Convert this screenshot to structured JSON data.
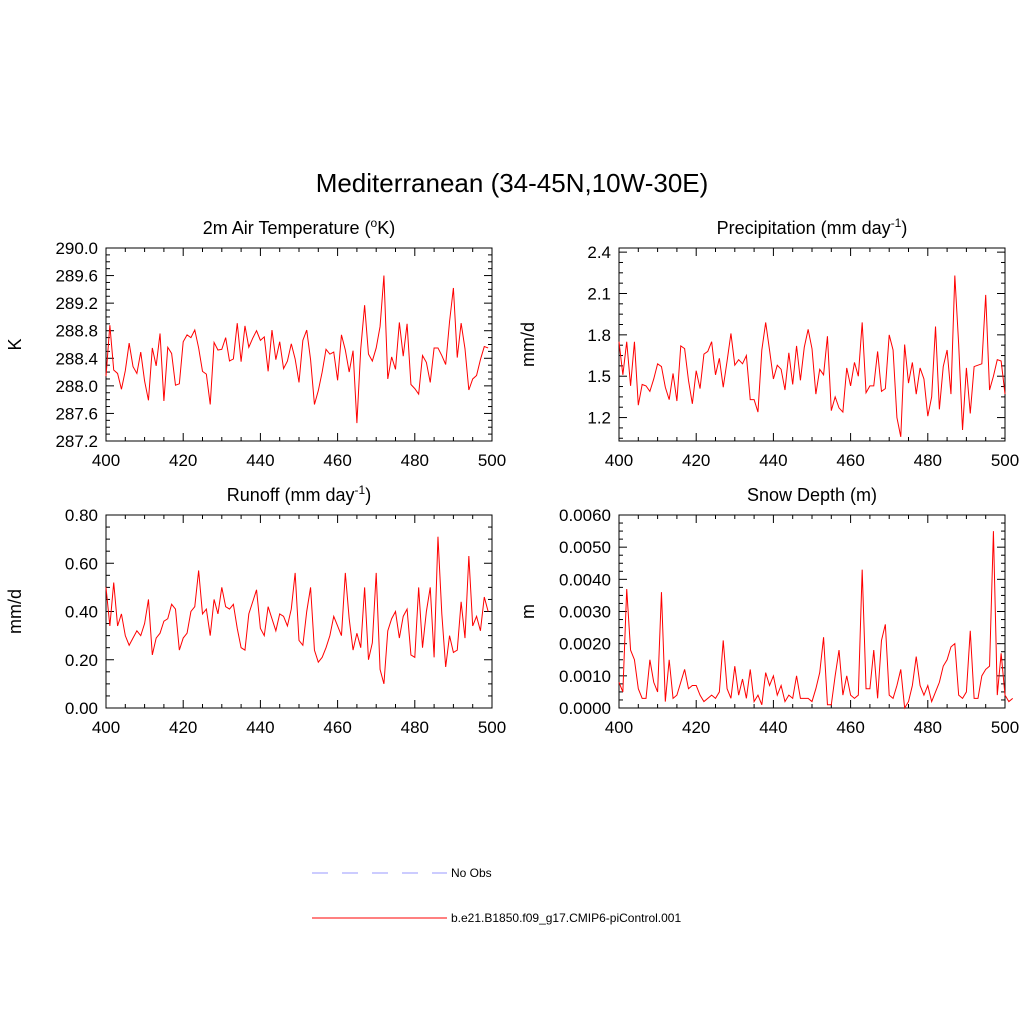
{
  "title": "Mediterranean (34-45N,10W-30E)",
  "legend": {
    "position": "bottom-center",
    "entries": [
      {
        "label": "No Obs",
        "color": "#9999ff",
        "style": "dashed"
      },
      {
        "label": "b.e21.B1850.f09_g17.CMIP6-piControl.001",
        "color": "#ff0000",
        "style": "solid"
      }
    ]
  },
  "chart_data": [
    {
      "type": "line",
      "title": "2m Air Temperature (",
      "title_sup": "o",
      "title_tail": "K)",
      "ylabel": "K",
      "xlim": [
        400,
        500
      ],
      "ylim": [
        287.2,
        290.0
      ],
      "xticks": [
        "400",
        "420",
        "440",
        "460",
        "480",
        "500"
      ],
      "yticks": [
        "287.2",
        "287.6",
        "288.0",
        "288.4",
        "288.8",
        "289.2",
        "289.6",
        "290.0"
      ],
      "series": [
        {
          "color": "#ff0000",
          "x_start": 400,
          "values": [
            288.14,
            288.88,
            288.23,
            288.18,
            287.95,
            288.22,
            288.62,
            288.28,
            288.18,
            288.49,
            288.07,
            287.79,
            288.55,
            288.29,
            288.76,
            287.78,
            288.56,
            288.47,
            288.01,
            288.03,
            288.64,
            288.74,
            288.7,
            288.81,
            288.55,
            288.21,
            288.17,
            287.73,
            288.63,
            288.52,
            288.53,
            288.7,
            288.36,
            288.39,
            288.91,
            288.35,
            288.87,
            288.56,
            288.69,
            288.8,
            288.66,
            288.71,
            288.21,
            288.81,
            288.38,
            288.64,
            288.25,
            288.36,
            288.61,
            288.39,
            288.05,
            288.66,
            288.81,
            288.38,
            287.73,
            287.93,
            288.2,
            288.53,
            288.46,
            288.49,
            288.08,
            288.74,
            288.52,
            288.2,
            288.51,
            287.46,
            288.54,
            289.17,
            288.46,
            288.36,
            288.55,
            288.86,
            289.6,
            288.1,
            288.42,
            288.24,
            288.92,
            288.43,
            288.9,
            288.02,
            287.96,
            287.88,
            288.44,
            288.34,
            288.05,
            288.55,
            288.55,
            288.44,
            288.31,
            288.93,
            289.42,
            288.41,
            288.91,
            288.54,
            287.94,
            288.1,
            288.15,
            288.38,
            288.57,
            288.55
          ]
        }
      ]
    },
    {
      "type": "line",
      "title": "Precipitation (mm day",
      "title_sup": "-1",
      "title_tail": ")",
      "ylabel": "mm/d",
      "xlim": [
        400,
        500
      ],
      "ylim": [
        1.03,
        2.43
      ],
      "xticks": [
        "400",
        "420",
        "440",
        "460",
        "480",
        "500"
      ],
      "yticks": [
        "1.2",
        "1.5",
        "1.8",
        "2.1",
        "2.4"
      ],
      "series": [
        {
          "color": "#ff0000",
          "x_start": 400,
          "values": [
            1.75,
            1.51,
            1.75,
            1.43,
            1.75,
            1.29,
            1.44,
            1.43,
            1.39,
            1.48,
            1.59,
            1.57,
            1.42,
            1.33,
            1.52,
            1.32,
            1.72,
            1.7,
            1.47,
            1.3,
            1.54,
            1.41,
            1.66,
            1.68,
            1.75,
            1.51,
            1.63,
            1.42,
            1.61,
            1.81,
            1.58,
            1.62,
            1.59,
            1.65,
            1.33,
            1.33,
            1.24,
            1.69,
            1.89,
            1.69,
            1.48,
            1.58,
            1.55,
            1.4,
            1.67,
            1.44,
            1.72,
            1.47,
            1.71,
            1.84,
            1.7,
            1.37,
            1.55,
            1.51,
            1.79,
            1.25,
            1.35,
            1.27,
            1.24,
            1.56,
            1.43,
            1.6,
            1.5,
            1.89,
            1.38,
            1.43,
            1.43,
            1.68,
            1.39,
            1.41,
            1.8,
            1.69,
            1.2,
            1.06,
            1.73,
            1.45,
            1.6,
            1.37,
            1.56,
            1.48,
            1.21,
            1.35,
            1.86,
            1.26,
            1.57,
            1.69,
            1.37,
            2.23,
            1.73,
            1.11,
            1.56,
            1.23,
            1.57,
            1.58,
            1.59,
            2.09,
            1.4,
            1.5,
            1.62,
            1.61,
            1.37
          ]
        }
      ]
    },
    {
      "type": "line",
      "title": "Runoff (mm day",
      "title_sup": "-1",
      "title_tail": ")",
      "ylabel": "mm/d",
      "xlim": [
        400,
        500
      ],
      "ylim": [
        0.0,
        0.8
      ],
      "xticks": [
        "400",
        "420",
        "440",
        "460",
        "480",
        "500"
      ],
      "yticks": [
        "0.00",
        "0.20",
        "0.40",
        "0.60",
        "0.80"
      ],
      "series": [
        {
          "color": "#ff0000",
          "x_start": 400,
          "values": [
            0.5,
            0.34,
            0.52,
            0.34,
            0.39,
            0.3,
            0.26,
            0.29,
            0.32,
            0.3,
            0.35,
            0.45,
            0.22,
            0.29,
            0.31,
            0.36,
            0.37,
            0.43,
            0.41,
            0.24,
            0.29,
            0.31,
            0.4,
            0.42,
            0.57,
            0.39,
            0.41,
            0.3,
            0.45,
            0.39,
            0.5,
            0.42,
            0.41,
            0.43,
            0.33,
            0.25,
            0.24,
            0.39,
            0.44,
            0.49,
            0.33,
            0.3,
            0.42,
            0.37,
            0.32,
            0.39,
            0.38,
            0.34,
            0.41,
            0.56,
            0.28,
            0.26,
            0.4,
            0.5,
            0.24,
            0.19,
            0.21,
            0.25,
            0.3,
            0.38,
            0.34,
            0.3,
            0.56,
            0.37,
            0.24,
            0.31,
            0.25,
            0.5,
            0.2,
            0.27,
            0.56,
            0.16,
            0.1,
            0.32,
            0.37,
            0.4,
            0.29,
            0.38,
            0.41,
            0.22,
            0.21,
            0.5,
            0.25,
            0.4,
            0.5,
            0.21,
            0.71,
            0.39,
            0.17,
            0.3,
            0.23,
            0.24,
            0.44,
            0.29,
            0.63,
            0.34,
            0.38,
            0.32,
            0.46,
            0.4
          ]
        }
      ]
    },
    {
      "type": "line",
      "title": "Snow Depth (m)",
      "title_sup": "",
      "title_tail": "",
      "ylabel": "m",
      "xlim": [
        400,
        500
      ],
      "ylim": [
        0.0,
        0.006
      ],
      "xticks": [
        "400",
        "420",
        "440",
        "460",
        "480",
        "500"
      ],
      "yticks": [
        "0.0000",
        "0.0010",
        "0.0020",
        "0.0030",
        "0.0040",
        "0.0050",
        "0.0060"
      ],
      "series": [
        {
          "color": "#ff0000",
          "x_start": 400,
          "values": [
            0.0008,
            0.0005,
            0.0037,
            0.0018,
            0.0015,
            0.0006,
            0.0003,
            0.0003,
            0.0015,
            0.0008,
            0.0005,
            0.0036,
            0.0002,
            0.0015,
            0.0003,
            0.0004,
            0.0008,
            0.0012,
            0.0006,
            0.0007,
            0.0007,
            0.0004,
            0.0002,
            0.0003,
            0.0004,
            0.0003,
            0.0005,
            0.0021,
            0.0006,
            0.0003,
            0.0013,
            0.0004,
            0.0009,
            0.0003,
            0.0012,
            0.0002,
            0.0004,
            0.0001,
            0.0011,
            0.0007,
            0.001,
            0.0004,
            0.0007,
            0.0002,
            0.0004,
            0.0003,
            0.001,
            0.0003,
            0.0003,
            0.0003,
            0.0002,
            0.0006,
            0.0011,
            0.0022,
            0.0001,
            0.0001,
            0.001,
            0.0018,
            0.0004,
            0.001,
            0.0004,
            0.0003,
            0.0004,
            0.0043,
            0.0006,
            0.0006,
            0.0018,
            0.0003,
            0.0021,
            0.0026,
            0.0004,
            0.0003,
            0.0007,
            0.0012,
            0.0,
            0.0002,
            0.0007,
            0.0016,
            0.0007,
            0.0004,
            0.0007,
            0.0002,
            0.0005,
            0.0008,
            0.0013,
            0.0015,
            0.0019,
            0.002,
            0.0004,
            0.0003,
            0.0005,
            0.0024,
            0.0003,
            0.0003,
            0.001,
            0.0012,
            0.0013,
            0.0055,
            0.0004,
            0.0017,
            0.0004,
            0.0002,
            0.0003
          ]
        }
      ]
    }
  ]
}
